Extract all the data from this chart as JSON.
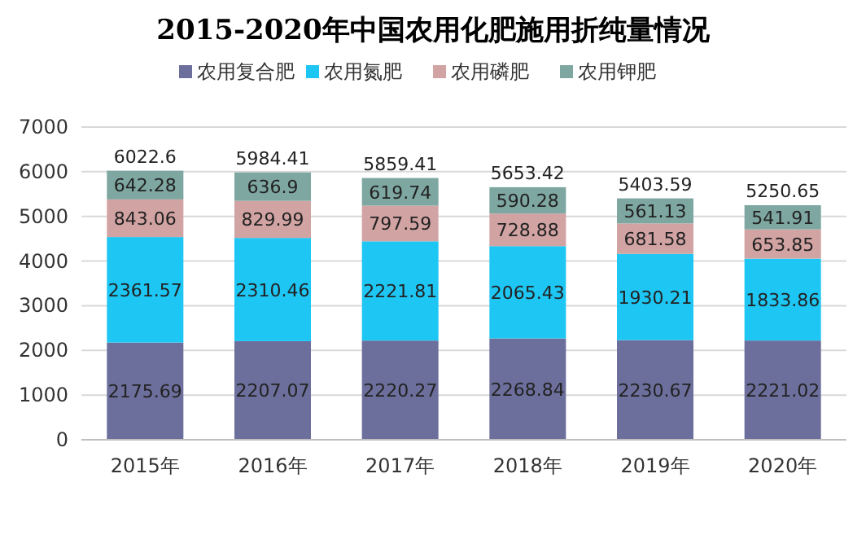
{
  "chart_data": {
    "type": "bar",
    "title": "2015-2020年中国农用化肥施用折纯量情况",
    "categories": [
      "2015年",
      "2016年",
      "2017年",
      "2018年",
      "2019年",
      "2020年"
    ],
    "stacked": true,
    "series": [
      {
        "name": "农用复合肥",
        "color": "#6c6f9c",
        "values": [
          2175.69,
          2207.07,
          2220.27,
          2268.84,
          2230.67,
          2221.02
        ]
      },
      {
        "name": "农用氮肥",
        "color": "#1ec6f4",
        "values": [
          2361.57,
          2310.46,
          2221.81,
          2065.43,
          1930.21,
          1833.86
        ]
      },
      {
        "name": "农用磷肥",
        "color": "#d2a3a3",
        "values": [
          843.06,
          829.99,
          797.59,
          728.88,
          681.58,
          653.85
        ]
      },
      {
        "name": "农用钾肥",
        "color": "#7ea7a1",
        "values": [
          642.28,
          636.9,
          619.74,
          590.28,
          561.13,
          541.91
        ]
      }
    ],
    "totals": [
      "6022.6",
      "5984.41",
      "5859.41",
      "5653.42",
      "5403.59",
      "5250.65"
    ],
    "ylim": [
      0,
      7000
    ],
    "yticks": [
      0,
      1000,
      2000,
      3000,
      4000,
      5000,
      6000,
      7000
    ],
    "grid": "y",
    "legend": "top",
    "data_labels": true
  }
}
